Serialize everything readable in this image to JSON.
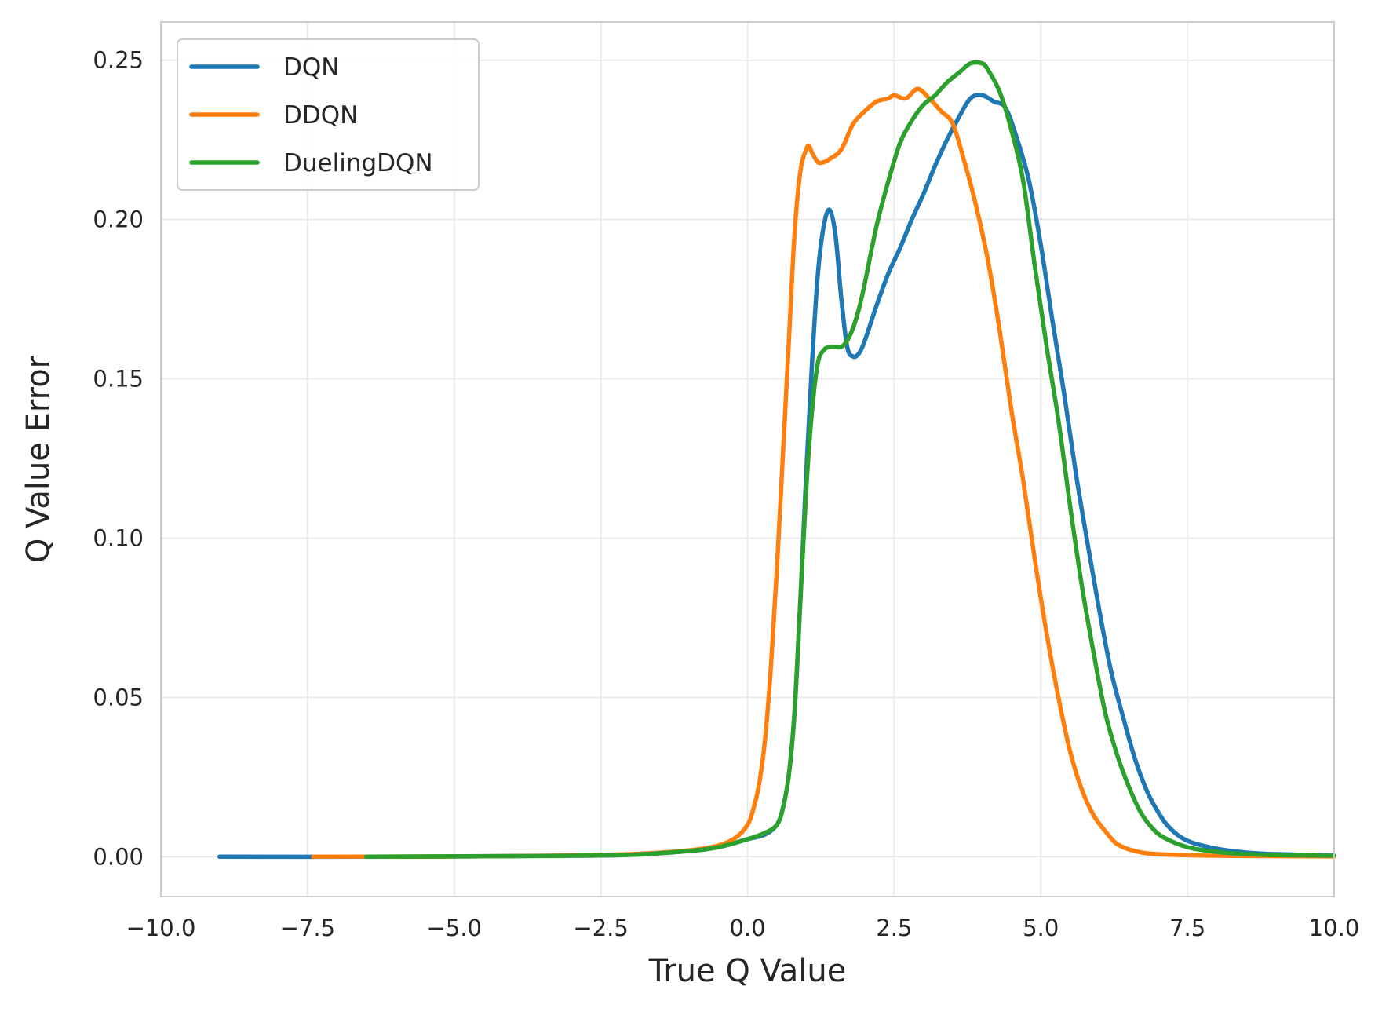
{
  "chart_data": {
    "type": "line",
    "title": "",
    "xlabel": "True Q Value",
    "ylabel": "Q Value Error",
    "xlim": [
      -10.0,
      10.0
    ],
    "ylim": [
      -0.0125,
      0.262
    ],
    "x_ticks": [
      -10.0,
      -7.5,
      -5.0,
      -2.5,
      0.0,
      2.5,
      5.0,
      7.5,
      10.0
    ],
    "x_tick_labels": [
      "−10.0",
      "−7.5",
      "−5.0",
      "−2.5",
      "0.0",
      "2.5",
      "5.0",
      "7.5",
      "10.0"
    ],
    "y_ticks": [
      0.0,
      0.05,
      0.1,
      0.15,
      0.2,
      0.25
    ],
    "y_tick_labels": [
      "0.00",
      "0.05",
      "0.10",
      "0.15",
      "0.20",
      "0.25"
    ],
    "grid": true,
    "legend_position": "top-left",
    "series": [
      {
        "name": "DQN",
        "color": "#1f77b4",
        "points": [
          [
            -9.0,
            0.0
          ],
          [
            -6.0,
            0.0
          ],
          [
            -3.0,
            0.0003
          ],
          [
            -2.0,
            0.0006
          ],
          [
            -1.0,
            0.0018
          ],
          [
            -0.5,
            0.003
          ],
          [
            0.0,
            0.0055
          ],
          [
            0.3,
            0.007
          ],
          [
            0.5,
            0.01
          ],
          [
            0.6,
            0.015
          ],
          [
            0.7,
            0.025
          ],
          [
            0.8,
            0.045
          ],
          [
            0.9,
            0.08
          ],
          [
            1.0,
            0.12
          ],
          [
            1.1,
            0.155
          ],
          [
            1.2,
            0.183
          ],
          [
            1.3,
            0.198
          ],
          [
            1.4,
            0.203
          ],
          [
            1.5,
            0.195
          ],
          [
            1.6,
            0.175
          ],
          [
            1.7,
            0.16
          ],
          [
            1.8,
            0.157
          ],
          [
            1.9,
            0.158
          ],
          [
            2.0,
            0.162
          ],
          [
            2.2,
            0.173
          ],
          [
            2.4,
            0.183
          ],
          [
            2.6,
            0.191
          ],
          [
            2.8,
            0.2
          ],
          [
            3.0,
            0.208
          ],
          [
            3.2,
            0.217
          ],
          [
            3.4,
            0.225
          ],
          [
            3.6,
            0.232
          ],
          [
            3.8,
            0.238
          ],
          [
            4.0,
            0.239
          ],
          [
            4.2,
            0.237
          ],
          [
            4.4,
            0.235
          ],
          [
            4.6,
            0.225
          ],
          [
            4.8,
            0.212
          ],
          [
            5.0,
            0.192
          ],
          [
            5.2,
            0.168
          ],
          [
            5.4,
            0.145
          ],
          [
            5.6,
            0.12
          ],
          [
            5.8,
            0.098
          ],
          [
            6.0,
            0.077
          ],
          [
            6.2,
            0.058
          ],
          [
            6.4,
            0.044
          ],
          [
            6.6,
            0.031
          ],
          [
            6.8,
            0.021
          ],
          [
            7.0,
            0.014
          ],
          [
            7.2,
            0.009
          ],
          [
            7.5,
            0.005
          ],
          [
            8.0,
            0.0025
          ],
          [
            8.5,
            0.0013
          ],
          [
            9.0,
            0.0008
          ],
          [
            10.0,
            0.0004
          ]
        ]
      },
      {
        "name": "DDQN",
        "color": "#ff7f0e",
        "points": [
          [
            -7.4,
            0.0
          ],
          [
            -6.5,
            0.0
          ],
          [
            -4.0,
            0.0002
          ],
          [
            -2.0,
            0.0008
          ],
          [
            -1.0,
            0.002
          ],
          [
            -0.5,
            0.0035
          ],
          [
            -0.2,
            0.006
          ],
          [
            0.0,
            0.01
          ],
          [
            0.1,
            0.015
          ],
          [
            0.2,
            0.023
          ],
          [
            0.3,
            0.037
          ],
          [
            0.4,
            0.06
          ],
          [
            0.5,
            0.09
          ],
          [
            0.6,
            0.125
          ],
          [
            0.7,
            0.16
          ],
          [
            0.8,
            0.195
          ],
          [
            0.9,
            0.215
          ],
          [
            1.0,
            0.222
          ],
          [
            1.05,
            0.223
          ],
          [
            1.1,
            0.221
          ],
          [
            1.2,
            0.218
          ],
          [
            1.3,
            0.218
          ],
          [
            1.4,
            0.219
          ],
          [
            1.6,
            0.222
          ],
          [
            1.8,
            0.23
          ],
          [
            2.0,
            0.234
          ],
          [
            2.2,
            0.237
          ],
          [
            2.4,
            0.238
          ],
          [
            2.5,
            0.239
          ],
          [
            2.7,
            0.238
          ],
          [
            2.9,
            0.241
          ],
          [
            3.1,
            0.238
          ],
          [
            3.3,
            0.234
          ],
          [
            3.5,
            0.23
          ],
          [
            3.7,
            0.218
          ],
          [
            3.9,
            0.204
          ],
          [
            4.1,
            0.187
          ],
          [
            4.3,
            0.165
          ],
          [
            4.5,
            0.14
          ],
          [
            4.7,
            0.118
          ],
          [
            4.9,
            0.093
          ],
          [
            5.1,
            0.07
          ],
          [
            5.3,
            0.05
          ],
          [
            5.5,
            0.033
          ],
          [
            5.7,
            0.021
          ],
          [
            5.9,
            0.013
          ],
          [
            6.1,
            0.008
          ],
          [
            6.3,
            0.004
          ],
          [
            6.6,
            0.0018
          ],
          [
            7.0,
            0.0008
          ],
          [
            8.0,
            0.0003
          ],
          [
            10.0,
            0.0001
          ]
        ]
      },
      {
        "name": "DuelingDQN",
        "color": "#2ca02c",
        "points": [
          [
            -6.5,
            0.0
          ],
          [
            -4.0,
            0.0002
          ],
          [
            -3.0,
            0.0003
          ],
          [
            -2.0,
            0.0006
          ],
          [
            -1.0,
            0.0018
          ],
          [
            -0.5,
            0.003
          ],
          [
            0.0,
            0.0055
          ],
          [
            0.3,
            0.0075
          ],
          [
            0.5,
            0.01
          ],
          [
            0.6,
            0.015
          ],
          [
            0.7,
            0.025
          ],
          [
            0.8,
            0.045
          ],
          [
            0.9,
            0.08
          ],
          [
            1.0,
            0.115
          ],
          [
            1.1,
            0.14
          ],
          [
            1.2,
            0.155
          ],
          [
            1.3,
            0.159
          ],
          [
            1.4,
            0.16
          ],
          [
            1.5,
            0.16
          ],
          [
            1.6,
            0.16
          ],
          [
            1.7,
            0.162
          ],
          [
            1.8,
            0.166
          ],
          [
            1.9,
            0.172
          ],
          [
            2.0,
            0.18
          ],
          [
            2.2,
            0.198
          ],
          [
            2.4,
            0.212
          ],
          [
            2.6,
            0.224
          ],
          [
            2.8,
            0.231
          ],
          [
            3.0,
            0.236
          ],
          [
            3.2,
            0.239
          ],
          [
            3.4,
            0.243
          ],
          [
            3.6,
            0.246
          ],
          [
            3.8,
            0.249
          ],
          [
            4.0,
            0.249
          ],
          [
            4.1,
            0.247
          ],
          [
            4.3,
            0.24
          ],
          [
            4.5,
            0.228
          ],
          [
            4.7,
            0.212
          ],
          [
            4.9,
            0.185
          ],
          [
            5.1,
            0.16
          ],
          [
            5.3,
            0.137
          ],
          [
            5.5,
            0.11
          ],
          [
            5.7,
            0.085
          ],
          [
            5.9,
            0.064
          ],
          [
            6.1,
            0.045
          ],
          [
            6.3,
            0.032
          ],
          [
            6.5,
            0.022
          ],
          [
            6.7,
            0.014
          ],
          [
            6.9,
            0.009
          ],
          [
            7.1,
            0.006
          ],
          [
            7.5,
            0.003
          ],
          [
            8.0,
            0.0015
          ],
          [
            8.5,
            0.0008
          ],
          [
            9.0,
            0.0005
          ],
          [
            10.0,
            0.0003
          ]
        ]
      }
    ]
  }
}
